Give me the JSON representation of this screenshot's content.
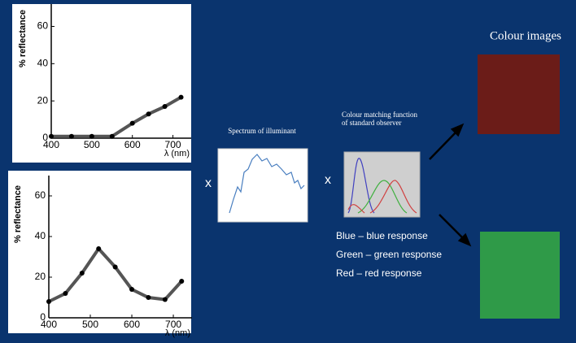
{
  "chart_data": [
    {
      "type": "line",
      "xlabel": "λ (nm)",
      "ylabel": "% reflectance",
      "x": [
        400,
        450,
        500,
        550,
        600,
        640,
        680,
        720
      ],
      "values": [
        1,
        1,
        1,
        1,
        8,
        13,
        17,
        22
      ],
      "color": "#555555",
      "markers": true,
      "xlim": [
        400,
        745
      ],
      "ylim": [
        0,
        72
      ],
      "xticks": [
        400,
        500,
        600,
        700
      ],
      "yticks": [
        0,
        20,
        40,
        60
      ]
    },
    {
      "type": "line",
      "xlabel": "λ (nm)",
      "ylabel": "% reflectance",
      "x": [
        400,
        440,
        480,
        520,
        560,
        600,
        640,
        680,
        720
      ],
      "values": [
        8,
        12,
        22,
        34,
        25,
        14,
        10,
        9,
        18
      ],
      "color": "#555555",
      "markers": true,
      "xlim": [
        400,
        745
      ],
      "ylim": [
        0,
        70
      ],
      "xticks": [
        400,
        500,
        600,
        700
      ],
      "yticks": [
        0,
        20,
        40,
        60
      ]
    }
  ],
  "slide": {
    "colour_images": "Colour images",
    "spectrum_label": "Spectrum of illuminant",
    "cmf_label": "Colour matching function of standard observer",
    "times_1": "x",
    "times_2": "x",
    "responses": [
      "Blue – blue response",
      "Green – green response",
      "Red – red response"
    ]
  }
}
